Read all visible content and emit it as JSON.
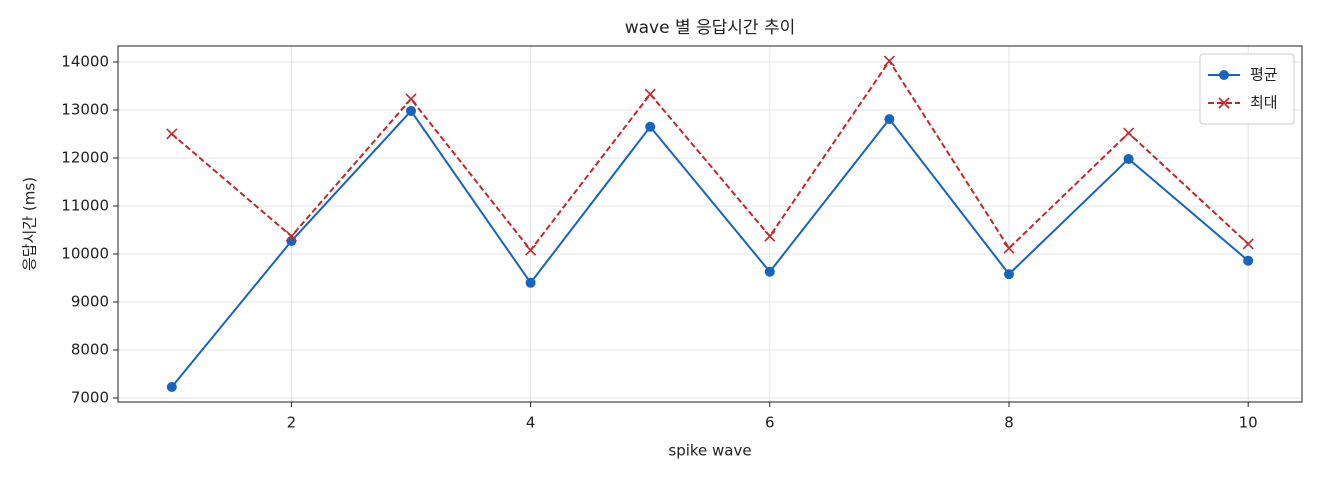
{
  "chart_data": {
    "type": "line",
    "title": "wave 별 응답시간 추이",
    "xlabel": "spike wave",
    "ylabel": "응답시간 (ms)",
    "x": [
      1,
      2,
      3,
      4,
      5,
      6,
      7,
      8,
      9,
      10
    ],
    "series": [
      {
        "name": "평균",
        "color": "#1565c0",
        "linestyle": "solid",
        "marker": "o",
        "values": [
          7230,
          10270,
          12980,
          9400,
          12650,
          9630,
          12810,
          9580,
          11980,
          9860
        ]
      },
      {
        "name": "최대",
        "color": "#c62828",
        "linestyle": "dashed",
        "marker": "x",
        "values": [
          12500,
          10370,
          13230,
          10080,
          13330,
          10370,
          14020,
          10120,
          12520,
          10210
        ]
      }
    ],
    "xlim": [
      0.55,
      10.45
    ],
    "ylim": [
      6917,
      14333
    ],
    "xticks": [
      2,
      4,
      6,
      8,
      10
    ],
    "yticks": [
      7000,
      8000,
      9000,
      10000,
      11000,
      12000,
      13000,
      14000
    ],
    "grid": true,
    "legend": "upper right"
  }
}
